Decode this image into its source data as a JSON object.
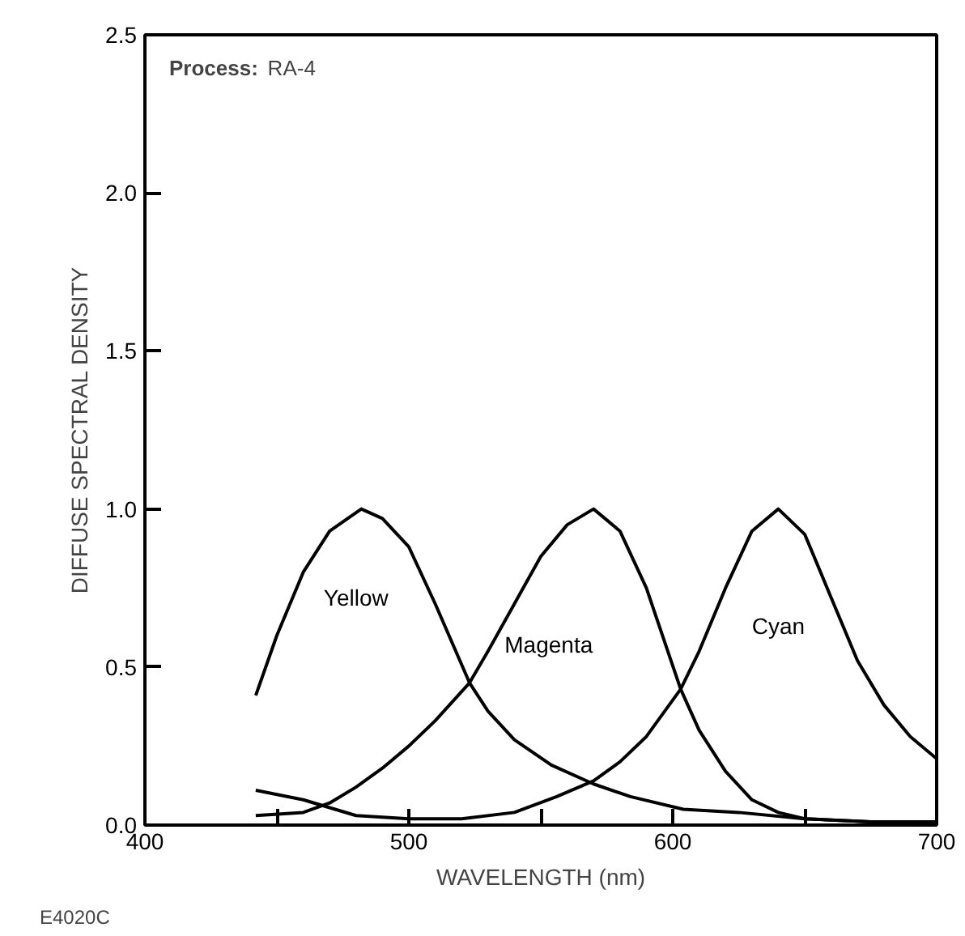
{
  "chart_data": {
    "type": "line",
    "xlabel": "WAVELENGTH (nm)",
    "ylabel": "DIFFUSE SPECTRAL DENSITY",
    "xlim": [
      400,
      700
    ],
    "ylim": [
      0,
      2.5
    ],
    "xticks": [
      400,
      {
        "value": 450,
        "label": null
      },
      500,
      {
        "value": 550,
        "label": null
      },
      600,
      {
        "value": 650,
        "label": null
      },
      700
    ],
    "yticks": [
      {
        "value": 0,
        "label": "0.0"
      },
      0.5,
      {
        "value": 1,
        "label": "1.0"
      },
      1.5,
      {
        "value": 2,
        "label": "2.0"
      },
      2.5
    ],
    "grid": false,
    "legend": false,
    "marker": "none",
    "line_style": "solid",
    "series": [
      {
        "name": "Yellow",
        "color": "#000000",
        "x": [
          442,
          450,
          460,
          470,
          482,
          490,
          500,
          510,
          523,
          530,
          540,
          554,
          570,
          584,
          604,
          625,
          650,
          675,
          700
        ],
        "values": [
          0.41,
          0.6,
          0.8,
          0.93,
          1.0,
          0.97,
          0.88,
          0.7,
          0.45,
          0.36,
          0.27,
          0.19,
          0.13,
          0.09,
          0.05,
          0.04,
          0.02,
          0.01,
          0.01
        ]
      },
      {
        "name": "Magenta",
        "color": "#000000",
        "x": [
          442,
          460,
          470,
          480,
          490,
          500,
          510,
          523,
          530,
          540,
          550,
          560,
          570,
          580,
          590,
          603,
          610,
          620,
          630,
          640,
          650,
          675,
          700
        ],
        "values": [
          0.03,
          0.04,
          0.07,
          0.12,
          0.18,
          0.25,
          0.33,
          0.45,
          0.55,
          0.7,
          0.85,
          0.95,
          1.0,
          0.93,
          0.75,
          0.43,
          0.3,
          0.17,
          0.08,
          0.04,
          0.02,
          0.01,
          0.01
        ]
      },
      {
        "name": "Cyan",
        "color": "#000000",
        "x": [
          442,
          460,
          480,
          500,
          520,
          540,
          556,
          570,
          580,
          590,
          603,
          610,
          620,
          630,
          640,
          650,
          660,
          670,
          680,
          690,
          700
        ],
        "values": [
          0.11,
          0.08,
          0.03,
          0.02,
          0.02,
          0.04,
          0.09,
          0.14,
          0.2,
          0.28,
          0.43,
          0.55,
          0.75,
          0.93,
          1.0,
          0.92,
          0.72,
          0.52,
          0.38,
          0.28,
          0.21
        ]
      }
    ],
    "annotations": [
      "Process: RA-4",
      "E4020C"
    ]
  }
}
